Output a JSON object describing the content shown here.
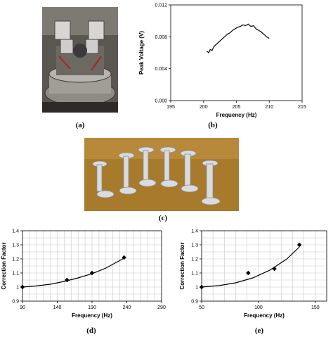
{
  "captions": {
    "a": "(a)",
    "b": "(b)",
    "c": "(c)",
    "d": "(d)",
    "e": "(e)"
  },
  "photos": {
    "a": {
      "description_icon": "vacuum-chamber-photo-icon"
    },
    "c": {
      "description_icon": "spacer-rods-photo-icon"
    }
  },
  "chart_data": [
    {
      "id": "b",
      "type": "line",
      "xlabel": "Frequency (Hz)",
      "ylabel": "Peak Voltage (V)",
      "xlim": [
        195,
        215
      ],
      "ylim": [
        0,
        0.012
      ],
      "xticks": [
        "195",
        "200",
        "205",
        "210",
        "215"
      ],
      "yticks": [
        "0.000",
        "0.004",
        "0.008",
        "0.012"
      ],
      "grid": false,
      "series": [
        {
          "x": [
            200.5,
            200.8,
            201.0,
            201.3,
            201.6,
            202.0,
            202.4,
            202.8,
            203.2,
            203.6,
            204.0,
            204.4,
            204.8,
            205.2,
            205.6,
            206.0,
            206.4,
            206.8,
            207.2,
            207.6,
            208.0,
            208.4,
            208.8,
            209.2,
            209.6,
            210.0
          ],
          "y": [
            0.0062,
            0.006,
            0.0064,
            0.0063,
            0.0068,
            0.0071,
            0.0074,
            0.0077,
            0.008,
            0.0083,
            0.0085,
            0.0088,
            0.009,
            0.0092,
            0.0093,
            0.0095,
            0.0094,
            0.0096,
            0.0093,
            0.0094,
            0.009,
            0.0088,
            0.0086,
            0.0083,
            0.008,
            0.0078
          ]
        }
      ]
    },
    {
      "id": "d",
      "type": "scatter",
      "xlabel": "Frequency (Hz)",
      "ylabel": "Correction Factor",
      "xlim": [
        90,
        290
      ],
      "ylim": [
        0.9,
        1.4
      ],
      "xticks": [
        "90",
        "140",
        "190",
        "240",
        "290"
      ],
      "yticks": [
        "0.9",
        "1",
        "1.1",
        "1.2",
        "1.3",
        "1.4"
      ],
      "grid": true,
      "series": [
        {
          "x": [
            90,
            154,
            190,
            236
          ],
          "y": [
            1.0,
            1.05,
            1.1,
            1.21
          ]
        }
      ],
      "trend": {
        "x": [
          90,
          110,
          130,
          150,
          170,
          190,
          210,
          236
        ],
        "y": [
          1.0,
          1.008,
          1.02,
          1.04,
          1.065,
          1.095,
          1.135,
          1.205
        ]
      }
    },
    {
      "id": "e",
      "type": "scatter",
      "xlabel": "Frequency (Hz)",
      "ylabel": "Correction Factor",
      "xlim": [
        50,
        160
      ],
      "ylim": [
        0.9,
        1.4
      ],
      "xticks": [
        "50",
        "100",
        "150"
      ],
      "yticks": [
        "0.9",
        "1",
        "1.1",
        "1.2",
        "1.3",
        "1.4"
      ],
      "grid": true,
      "series": [
        {
          "x": [
            50,
            91,
            114,
            136
          ],
          "y": [
            1.0,
            1.1,
            1.13,
            1.3
          ]
        }
      ],
      "trend": {
        "x": [
          50,
          65,
          80,
          95,
          110,
          125,
          136
        ],
        "y": [
          1.0,
          1.01,
          1.03,
          1.065,
          1.12,
          1.2,
          1.285
        ]
      }
    }
  ]
}
